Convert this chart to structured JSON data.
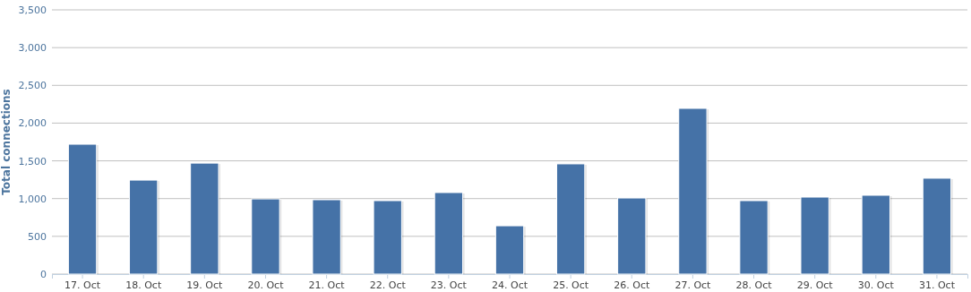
{
  "chart_data": {
    "type": "bar",
    "ylabel": "Total connections",
    "categories": [
      "17. Oct",
      "18. Oct",
      "19. Oct",
      "20. Oct",
      "21. Oct",
      "22. Oct",
      "23. Oct",
      "24. Oct",
      "25. Oct",
      "26. Oct",
      "27. Oct",
      "28. Oct",
      "29. Oct",
      "30. Oct",
      "31. Oct"
    ],
    "values": [
      1720,
      1245,
      1470,
      996,
      985,
      973,
      1080,
      640,
      1460,
      1008,
      2195,
      973,
      1020,
      1044,
      1270
    ],
    "color": "#4572a7",
    "ylim": [
      0,
      3500
    ],
    "yticks": [
      0,
      500,
      {
        "value": 1000,
        "label": "1,000"
      },
      {
        "value": 1500,
        "label": "1,500"
      },
      {
        "value": 2000,
        "label": "2,000"
      },
      {
        "value": 2500,
        "label": "2,500"
      },
      {
        "value": 3000,
        "label": "3,000"
      },
      {
        "value": 3500,
        "label": "3,500"
      }
    ],
    "grid": "y"
  }
}
